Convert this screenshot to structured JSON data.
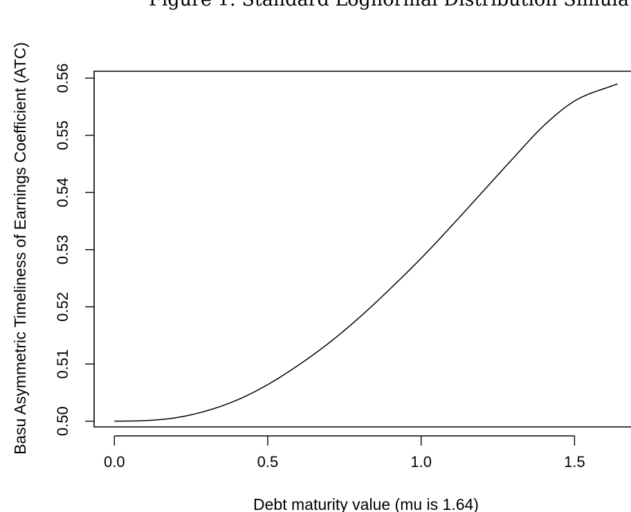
{
  "chart_data": {
    "type": "line",
    "title": "Figure 1: Standard Lognormal Distribution Simula",
    "xlabel": "Debt maturity value (mu is 1.64)",
    "ylabel": "Basu Asymmetric Timeliness of Earnings Coefficient (ATC)",
    "xlim": [
      -0.066,
      1.684
    ],
    "ylim": [
      0.499,
      0.5612
    ],
    "x_ticks": [
      0.0,
      0.5,
      1.0,
      1.5
    ],
    "x_tick_labels": [
      "0.0",
      "0.5",
      "1.0",
      "1.5"
    ],
    "y_ticks": [
      0.5,
      0.51,
      0.52,
      0.53,
      0.54,
      0.55,
      0.56
    ],
    "y_tick_labels": [
      "0.50",
      "0.51",
      "0.52",
      "0.53",
      "0.54",
      "0.55",
      "0.56"
    ],
    "grid": false,
    "legend": "none",
    "line_color": "#000000",
    "series": [
      {
        "x": [
          0.0,
          0.1,
          0.2,
          0.3,
          0.4,
          0.5,
          0.6,
          0.7,
          0.8,
          0.9,
          1.0,
          1.1,
          1.2,
          1.3,
          1.4,
          1.5,
          1.64
        ],
        "values": [
          0.5,
          0.5001,
          0.5006,
          0.5018,
          0.5037,
          0.5064,
          0.5098,
          0.5137,
          0.5182,
          0.5232,
          0.5285,
          0.5342,
          0.5401,
          0.546,
          0.5517,
          0.556,
          0.559
        ]
      }
    ]
  }
}
